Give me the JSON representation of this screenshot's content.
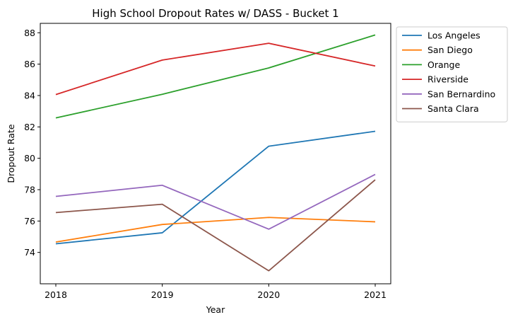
{
  "chart_data": {
    "type": "line",
    "title": "High School Dropout Rates w/ DASS - Bucket 1",
    "xlabel": "Year",
    "ylabel": "Dropout Rate",
    "x": [
      "2018",
      "2019",
      "2020",
      "2021"
    ],
    "ylim": [
      72.0,
      88.6
    ],
    "yticks": [
      "74",
      "76",
      "78",
      "80",
      "82",
      "84",
      "86",
      "88"
    ],
    "grid": false,
    "legend_position": "outside right, top",
    "series": [
      {
        "name": "Los Angeles",
        "color": "#1f77b4",
        "values": [
          74.55,
          75.25,
          80.77,
          81.72
        ]
      },
      {
        "name": "San Diego",
        "color": "#ff7f0e",
        "values": [
          74.66,
          75.78,
          76.23,
          75.95
        ]
      },
      {
        "name": "Orange",
        "color": "#2ca02c",
        "values": [
          82.57,
          84.08,
          85.76,
          87.86
        ]
      },
      {
        "name": "Riverside",
        "color": "#d62728",
        "values": [
          84.06,
          86.26,
          87.33,
          85.88
        ]
      },
      {
        "name": "San Bernardino",
        "color": "#9467bd",
        "values": [
          77.57,
          78.28,
          75.48,
          78.97
        ]
      },
      {
        "name": "Santa Clara",
        "color": "#8c564b",
        "values": [
          76.54,
          77.07,
          72.83,
          78.63
        ]
      }
    ]
  }
}
